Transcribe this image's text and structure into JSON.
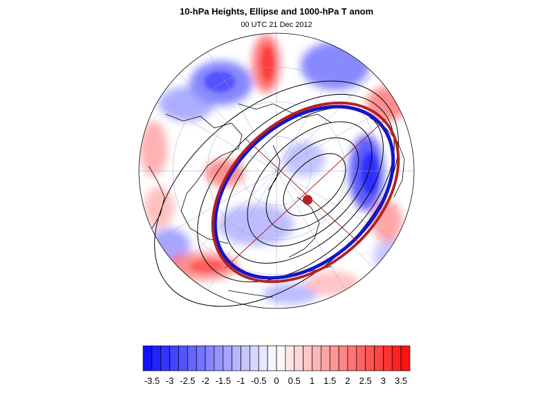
{
  "title": "10-hPa Heights, Ellipse and 1000-hPa T anom",
  "subtitle": "00 UTC 21 Dec 2012",
  "colors": {
    "cold": "#0000ff",
    "warm": "#ff0000",
    "ellipse_outer": "#b22222",
    "ellipse_inner": "#1515c8",
    "contour": "#000000",
    "center_dot": "#b22222"
  },
  "colorbar": {
    "levels": [
      -3.75,
      -3.5,
      -3.25,
      -3,
      -2.75,
      -2.5,
      -2.25,
      -2,
      -1.75,
      -1.5,
      -1.25,
      -1,
      -0.75,
      -0.5,
      -0.25,
      0,
      0.25,
      0.5,
      0.75,
      1,
      1.25,
      1.5,
      1.75,
      2,
      2.25,
      2.5,
      2.75,
      3,
      3.25,
      3.5,
      3.75
    ],
    "tick_labels": [
      "-3.5",
      "-3",
      "-2.5",
      "-2",
      "-1.5",
      "-1",
      "-0.5",
      "0",
      "0.5",
      "1",
      "1.5",
      "2",
      "2.5",
      "3",
      "3.5"
    ],
    "tick_values": [
      -3.5,
      -3,
      -2.5,
      -2,
      -1.5,
      -1,
      -0.5,
      0,
      0.5,
      1,
      1.5,
      2,
      2.5,
      3,
      3.5
    ]
  },
  "map_features": {
    "projection": "polar-stereographic-north",
    "field": "1000-hPa T anomaly shading",
    "overlays": [
      "10-hPa height contours",
      "fitted ellipse",
      "ellipse axes",
      "ellipse center"
    ]
  }
}
